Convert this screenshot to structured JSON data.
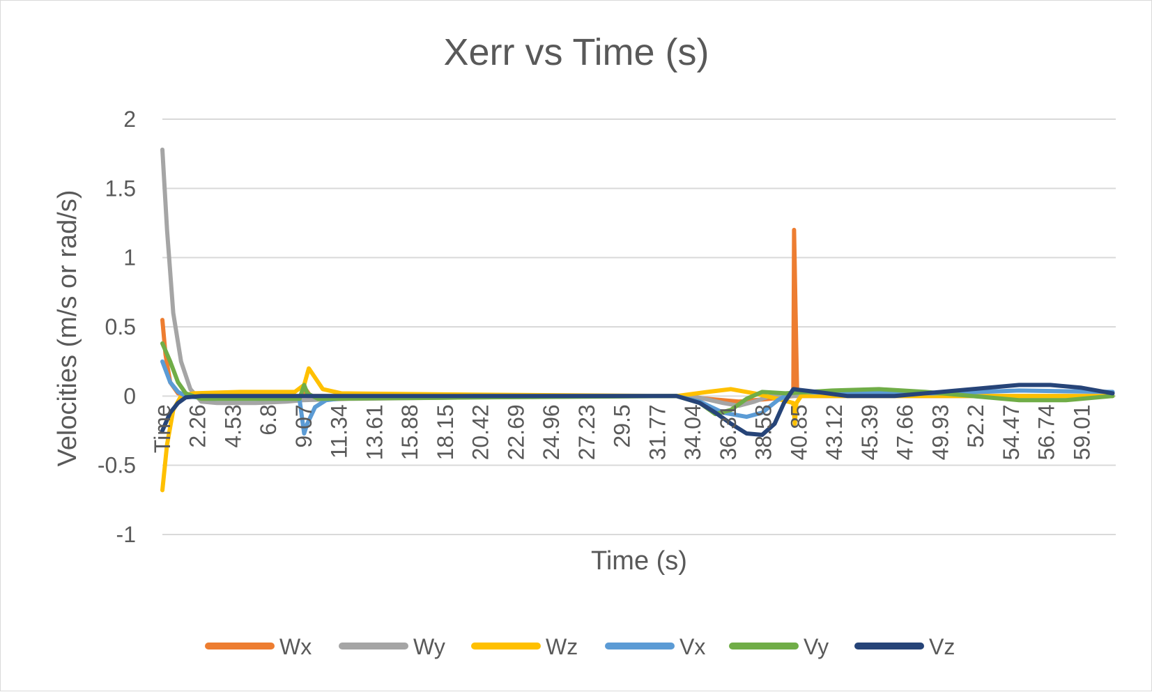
{
  "chart_data": {
    "type": "line",
    "title": "Xerr vs Time (s)",
    "xlabel": "Time (s)",
    "ylabel": "Velocities (m/s or rad/s)",
    "ylim": [
      -1,
      2
    ],
    "yticks": [
      "2",
      "1.5",
      "1",
      "0.5",
      "0",
      "-0.5",
      "-1"
    ],
    "xticks": [
      "Time",
      "2.26",
      "4.53",
      "6.8",
      "9.07",
      "11.34",
      "13.61",
      "15.88",
      "18.15",
      "20.42",
      "22.69",
      "24.96",
      "27.23",
      "29.5",
      "31.77",
      "34.04",
      "36.31",
      "38.58",
      "40.85",
      "43.12",
      "45.39",
      "47.66",
      "49.93",
      "52.2",
      "54.47",
      "56.74",
      "59.01"
    ],
    "xlim": [
      0,
      61.2
    ],
    "grid": true,
    "legend_position": "bottom",
    "series": [
      {
        "name": "Wx",
        "color": "#ED7D31",
        "points": [
          [
            0,
            0.55
          ],
          [
            0.2,
            0.3
          ],
          [
            0.5,
            0.1
          ],
          [
            1,
            0.02
          ],
          [
            2,
            0
          ],
          [
            5,
            0
          ],
          [
            9,
            0
          ],
          [
            9.2,
            0.05
          ],
          [
            9.5,
            0
          ],
          [
            20,
            0
          ],
          [
            33,
            0
          ],
          [
            35,
            -0.02
          ],
          [
            37,
            -0.04
          ],
          [
            39,
            -0.02
          ],
          [
            40.5,
            0
          ],
          [
            40.55,
            1.2
          ],
          [
            40.65,
            0.6
          ],
          [
            40.75,
            0
          ],
          [
            45,
            0
          ],
          [
            55,
            0
          ],
          [
            61,
            0
          ]
        ]
      },
      {
        "name": "Wy",
        "color": "#A5A5A5",
        "points": [
          [
            0,
            1.78
          ],
          [
            0.3,
            1.2
          ],
          [
            0.7,
            0.6
          ],
          [
            1.2,
            0.25
          ],
          [
            1.8,
            0.05
          ],
          [
            2.5,
            -0.04
          ],
          [
            3.5,
            -0.05
          ],
          [
            6,
            -0.05
          ],
          [
            8,
            -0.04
          ],
          [
            9,
            -0.03
          ],
          [
            12,
            -0.02
          ],
          [
            20,
            -0.01
          ],
          [
            30,
            0
          ],
          [
            34,
            0
          ],
          [
            36,
            -0.05
          ],
          [
            37,
            -0.07
          ],
          [
            38,
            -0.04
          ],
          [
            39,
            0
          ],
          [
            45,
            0
          ],
          [
            61,
            0
          ]
        ]
      },
      {
        "name": "Wz",
        "color": "#FFC000",
        "points": [
          [
            0,
            -0.68
          ],
          [
            0.3,
            -0.35
          ],
          [
            0.7,
            -0.1
          ],
          [
            1.2,
            0
          ],
          [
            2,
            0.02
          ],
          [
            5,
            0.03
          ],
          [
            8.5,
            0.03
          ],
          [
            9.1,
            0.08
          ],
          [
            9.4,
            0.2
          ],
          [
            9.7,
            0.15
          ],
          [
            10.3,
            0.05
          ],
          [
            11.5,
            0.02
          ],
          [
            20,
            0.01
          ],
          [
            33,
            0
          ],
          [
            35,
            0.03
          ],
          [
            36.5,
            0.05
          ],
          [
            38,
            0.02
          ],
          [
            39.5,
            -0.02
          ],
          [
            40.5,
            -0.05
          ],
          [
            40.6,
            -0.2
          ],
          [
            40.7,
            -0.05
          ],
          [
            41,
            0
          ],
          [
            50,
            0
          ],
          [
            61,
            0
          ]
        ]
      },
      {
        "name": "Vx",
        "color": "#5B9BD5",
        "points": [
          [
            0,
            0.25
          ],
          [
            0.5,
            0.1
          ],
          [
            1,
            0.03
          ],
          [
            1.5,
            0
          ],
          [
            3,
            -0.02
          ],
          [
            8.8,
            -0.02
          ],
          [
            9.1,
            -0.27
          ],
          [
            9.3,
            -0.2
          ],
          [
            9.8,
            -0.08
          ],
          [
            10.5,
            -0.03
          ],
          [
            12,
            -0.01
          ],
          [
            20,
            0
          ],
          [
            33,
            0
          ],
          [
            34.5,
            -0.04
          ],
          [
            36,
            -0.12
          ],
          [
            37.5,
            -0.15
          ],
          [
            38.5,
            -0.12
          ],
          [
            39.5,
            -0.03
          ],
          [
            40.5,
            0.03
          ],
          [
            45,
            0.02
          ],
          [
            50,
            0.02
          ],
          [
            55,
            0.04
          ],
          [
            61,
            0.03
          ]
        ]
      },
      {
        "name": "Vy",
        "color": "#70AD47",
        "points": [
          [
            0,
            0.38
          ],
          [
            0.5,
            0.25
          ],
          [
            1,
            0.1
          ],
          [
            1.5,
            0.02
          ],
          [
            2.5,
            -0.02
          ],
          [
            8.8,
            -0.02
          ],
          [
            9.1,
            0.08
          ],
          [
            9.3,
            0.02
          ],
          [
            10,
            -0.02
          ],
          [
            20,
            -0.01
          ],
          [
            33,
            0
          ],
          [
            34.5,
            -0.05
          ],
          [
            35.5,
            -0.13
          ],
          [
            36.5,
            -0.1
          ],
          [
            37.5,
            -0.02
          ],
          [
            38.5,
            0.03
          ],
          [
            40,
            0.02
          ],
          [
            43,
            0.04
          ],
          [
            46,
            0.05
          ],
          [
            49,
            0.03
          ],
          [
            52,
            0
          ],
          [
            55,
            -0.03
          ],
          [
            58,
            -0.03
          ],
          [
            61,
            0
          ]
        ]
      },
      {
        "name": "Vz",
        "color": "#264478",
        "points": [
          [
            0,
            -0.25
          ],
          [
            0.5,
            -0.12
          ],
          [
            1,
            -0.05
          ],
          [
            1.5,
            -0.01
          ],
          [
            2.5,
            0
          ],
          [
            30,
            0
          ],
          [
            33,
            0
          ],
          [
            34.5,
            -0.05
          ],
          [
            35.5,
            -0.12
          ],
          [
            36.5,
            -0.2
          ],
          [
            37.5,
            -0.27
          ],
          [
            38.5,
            -0.28
          ],
          [
            39.3,
            -0.2
          ],
          [
            39.9,
            -0.05
          ],
          [
            40.5,
            0.05
          ],
          [
            42,
            0.03
          ],
          [
            44,
            0
          ],
          [
            47,
            0
          ],
          [
            50,
            0.03
          ],
          [
            53,
            0.06
          ],
          [
            55,
            0.08
          ],
          [
            57,
            0.08
          ],
          [
            59,
            0.06
          ],
          [
            61,
            0.02
          ]
        ]
      }
    ]
  }
}
